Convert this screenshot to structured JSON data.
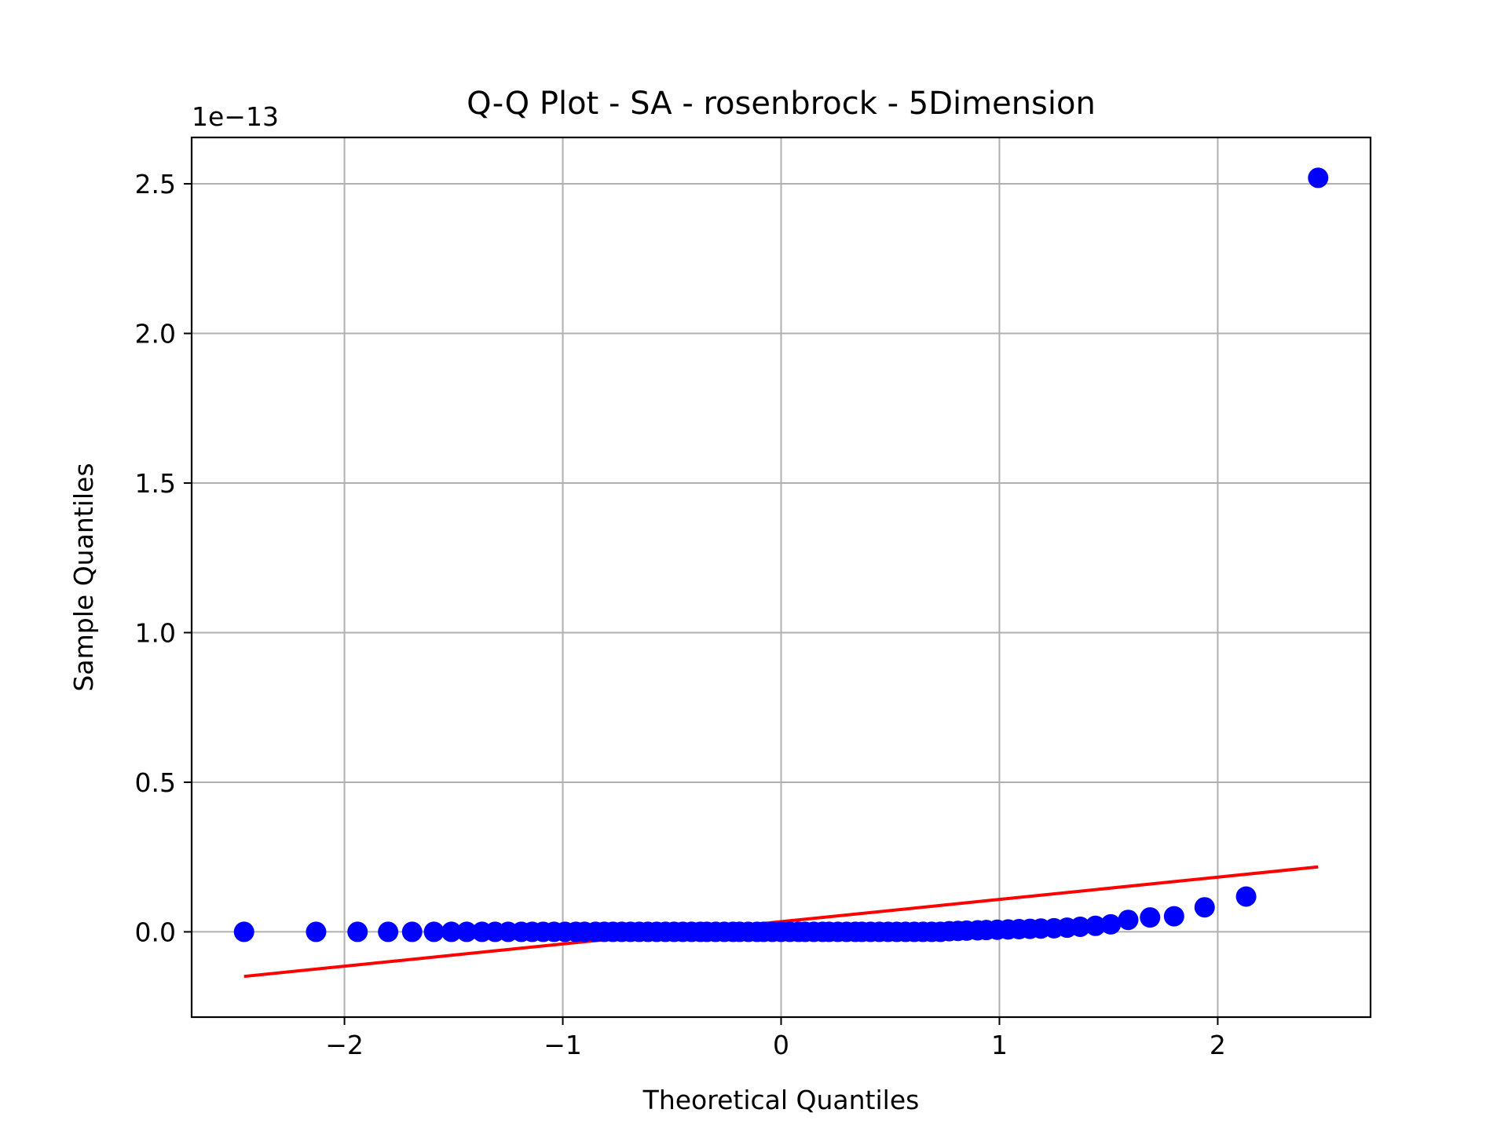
{
  "chart_data": {
    "type": "scatter",
    "title": "Q-Q Plot - SA - rosenbrock - 5Dimension",
    "xlabel": "Theoretical Quantiles",
    "ylabel": "Sample Quantiles",
    "y_offset_label": "1e−13",
    "xlim": [
      -2.7,
      2.7
    ],
    "ylim": [
      -0.285,
      2.655
    ],
    "xticks": [
      -2,
      -1,
      0,
      1,
      2
    ],
    "xtick_labels": [
      "−2",
      "−1",
      "0",
      "1",
      "2"
    ],
    "yticks": [
      0.0,
      0.5,
      1.0,
      1.5,
      2.0,
      2.5
    ],
    "ytick_labels": [
      "0.0",
      "0.5",
      "1.0",
      "1.5",
      "2.0",
      "2.5"
    ],
    "grid": true,
    "marker_color": "#0000ff",
    "line_color": "#ff0000",
    "series": [
      {
        "type": "scatter",
        "x": [
          -2.46,
          -2.13,
          -1.94,
          -1.8,
          -1.69,
          -1.59,
          -1.51,
          -1.44,
          -1.37,
          -1.31,
          -1.25,
          -1.19,
          -1.14,
          -1.09,
          -1.04,
          -0.99,
          -0.94,
          -0.9,
          -0.85,
          -0.81,
          -0.77,
          -0.73,
          -0.69,
          -0.65,
          -0.61,
          -0.57,
          -0.53,
          -0.49,
          -0.45,
          -0.41,
          -0.37,
          -0.34,
          -0.3,
          -0.26,
          -0.22,
          -0.19,
          -0.15,
          -0.11,
          -0.08,
          -0.04,
          0.0,
          0.04,
          0.08,
          0.11,
          0.15,
          0.19,
          0.22,
          0.26,
          0.3,
          0.34,
          0.37,
          0.41,
          0.45,
          0.49,
          0.53,
          0.57,
          0.61,
          0.65,
          0.69,
          0.73,
          0.77,
          0.81,
          0.85,
          0.9,
          0.94,
          0.99,
          1.04,
          1.09,
          1.14,
          1.19,
          1.25,
          1.31,
          1.37,
          1.44,
          1.51,
          1.59,
          1.69,
          1.8,
          1.94,
          2.13,
          2.46
        ],
        "y": [
          0.0,
          0.0,
          0.0,
          0.0,
          0.0,
          0.0,
          0.0,
          0.0,
          0.0,
          0.0,
          0.0,
          0.0,
          0.0,
          0.0,
          0.0,
          0.0,
          0.0,
          0.0,
          0.0,
          0.0,
          0.0,
          0.0,
          0.0,
          0.0,
          0.0,
          0.0,
          0.0,
          0.0,
          0.0,
          0.0,
          0.0,
          0.0,
          0.0,
          0.0,
          0.0,
          0.0,
          0.0,
          0.0,
          0.0,
          0.0,
          0.0,
          0.0,
          0.0,
          0.0,
          0.0,
          0.0,
          0.0,
          0.0,
          0.0,
          0.0,
          0.0,
          0.0,
          0.0,
          0.0,
          0.0,
          0.0,
          0.0,
          0.0,
          0.0,
          0.0,
          0.002,
          0.003,
          0.004,
          0.005,
          0.006,
          0.007,
          0.008,
          0.009,
          0.01,
          0.011,
          0.012,
          0.014,
          0.017,
          0.02,
          0.025,
          0.04,
          0.048,
          0.052,
          0.082,
          0.118,
          2.52
        ]
      },
      {
        "type": "line",
        "x": [
          -2.46,
          2.46
        ],
        "y": [
          -0.149,
          0.217
        ]
      }
    ]
  }
}
